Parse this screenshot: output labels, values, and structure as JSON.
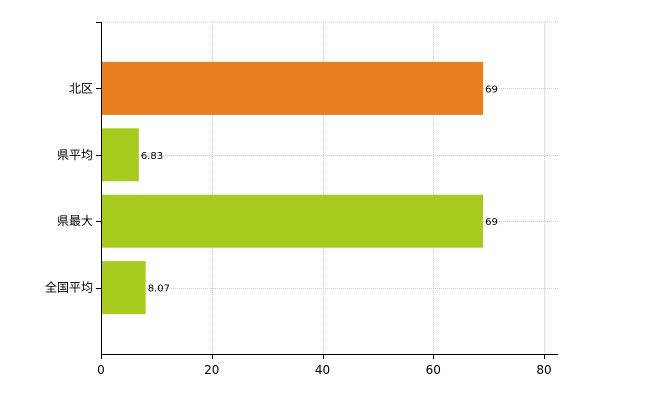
{
  "chart_data": {
    "type": "bar",
    "orientation": "horizontal",
    "categories": [
      "北区",
      "県平均",
      "県最大",
      "全国平均"
    ],
    "values": [
      69,
      6.83,
      69,
      8.07
    ],
    "data_labels": [
      "69",
      "6.83",
      "69",
      "8.07"
    ],
    "bar_colors": [
      "#e87e1e",
      "#a7cc1f",
      "#a7cc1f",
      "#a7cc1f"
    ],
    "xlim": [
      0,
      80
    ],
    "xticks": [
      0,
      20,
      40,
      60,
      80
    ],
    "grid": true,
    "title": "",
    "xlabel": "",
    "ylabel": ""
  }
}
